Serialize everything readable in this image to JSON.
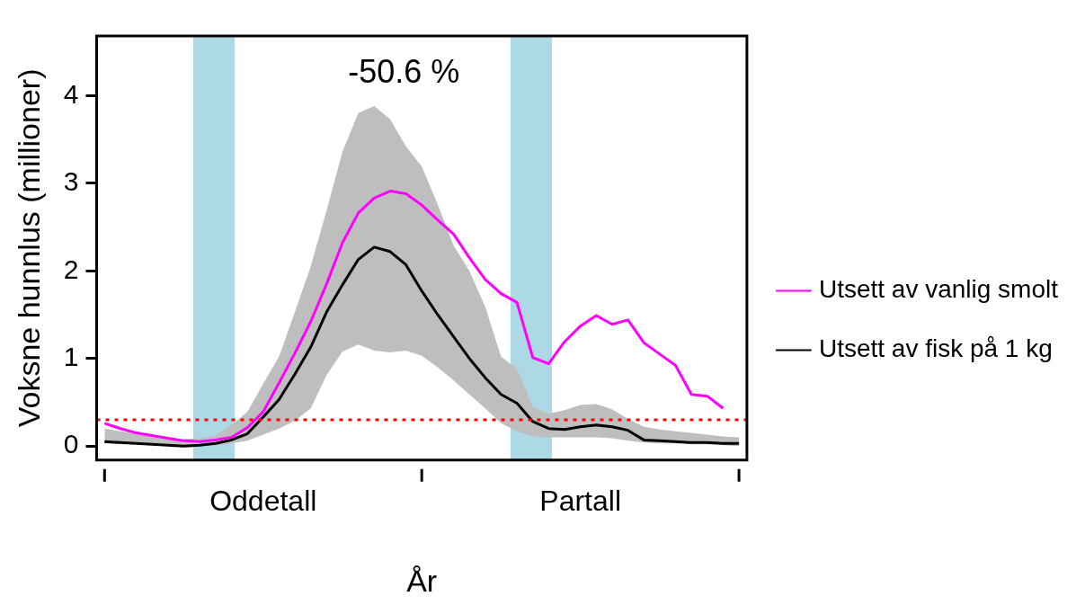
{
  "chart_data": {
    "type": "line",
    "xlabel": "År",
    "ylabel": "Voksne hunnlus (millioner)",
    "annotations": [
      "-50.6 %"
    ],
    "categories": [
      null,
      null,
      null,
      null,
      null,
      null,
      null,
      null,
      null,
      null,
      "Oddetall",
      null,
      null,
      null,
      null,
      null,
      null,
      null,
      null,
      null,
      null,
      null,
      null,
      null,
      null,
      null,
      null,
      null,
      null,
      null,
      "Partall",
      null,
      null,
      null,
      null,
      null,
      null,
      null,
      null,
      null,
      null
    ],
    "ylim": [
      -0.16,
      4.68
    ],
    "yticks": [
      0,
      1,
      2,
      3,
      4
    ],
    "grid": false,
    "legend": "right",
    "marker": "none",
    "line_style": "solid",
    "ref_lines": [
      {
        "axis": "y",
        "value": 0.3,
        "color": "#ff0000",
        "line_style": "dotted"
      }
    ],
    "series": [
      {
        "name": "Utsett av vanlig smolt",
        "color": "#ff00ff",
        "values": [
          0.26,
          0.2,
          0.15,
          0.12,
          0.09,
          0.06,
          0.05,
          0.07,
          0.1,
          0.21,
          0.39,
          0.72,
          1.06,
          1.42,
          1.85,
          2.32,
          2.66,
          2.83,
          2.91,
          2.88,
          2.75,
          2.58,
          2.42,
          2.15,
          1.9,
          1.74,
          1.64,
          1.01,
          0.94,
          1.19,
          1.37,
          1.49,
          1.39,
          1.44,
          1.18,
          1.05,
          0.92,
          0.59,
          0.57,
          0.43,
          null
        ]
      },
      {
        "name": "Utsett av fisk på 1 kg",
        "color": "#000000",
        "values": [
          0.05,
          0.04,
          0.03,
          0.02,
          0.01,
          0.0,
          0.01,
          0.03,
          0.07,
          0.14,
          0.33,
          0.53,
          0.82,
          1.13,
          1.53,
          1.84,
          2.13,
          2.27,
          2.22,
          2.07,
          1.77,
          1.5,
          1.25,
          1.0,
          0.78,
          0.59,
          0.49,
          0.28,
          0.2,
          0.19,
          0.22,
          0.24,
          0.22,
          0.18,
          0.07,
          0.06,
          0.05,
          0.04,
          0.04,
          0.03,
          0.03
        ],
        "lower": [
          0.03,
          0.02,
          0.02,
          0.01,
          0.0,
          0.0,
          0.01,
          0.01,
          0.03,
          0.06,
          0.13,
          0.2,
          0.29,
          0.43,
          0.81,
          1.08,
          1.16,
          1.09,
          1.07,
          1.09,
          1.03,
          0.9,
          0.75,
          0.59,
          0.43,
          0.26,
          0.17,
          0.11,
          0.1,
          0.1,
          0.1,
          0.1,
          0.09,
          0.06,
          0.04,
          0.03,
          0.03,
          0.02,
          0.02,
          0.01,
          0.0
        ],
        "upper": [
          0.2,
          0.17,
          0.14,
          0.11,
          0.08,
          0.08,
          0.09,
          0.12,
          0.24,
          0.39,
          0.71,
          1.02,
          1.53,
          2.05,
          2.69,
          3.36,
          3.8,
          3.88,
          3.73,
          3.42,
          3.19,
          2.76,
          2.29,
          2.0,
          1.59,
          1.02,
          0.88,
          0.45,
          0.37,
          0.41,
          0.47,
          0.48,
          0.42,
          0.31,
          0.22,
          0.19,
          0.17,
          0.15,
          0.13,
          0.11,
          0.1
        ]
      }
    ]
  }
}
